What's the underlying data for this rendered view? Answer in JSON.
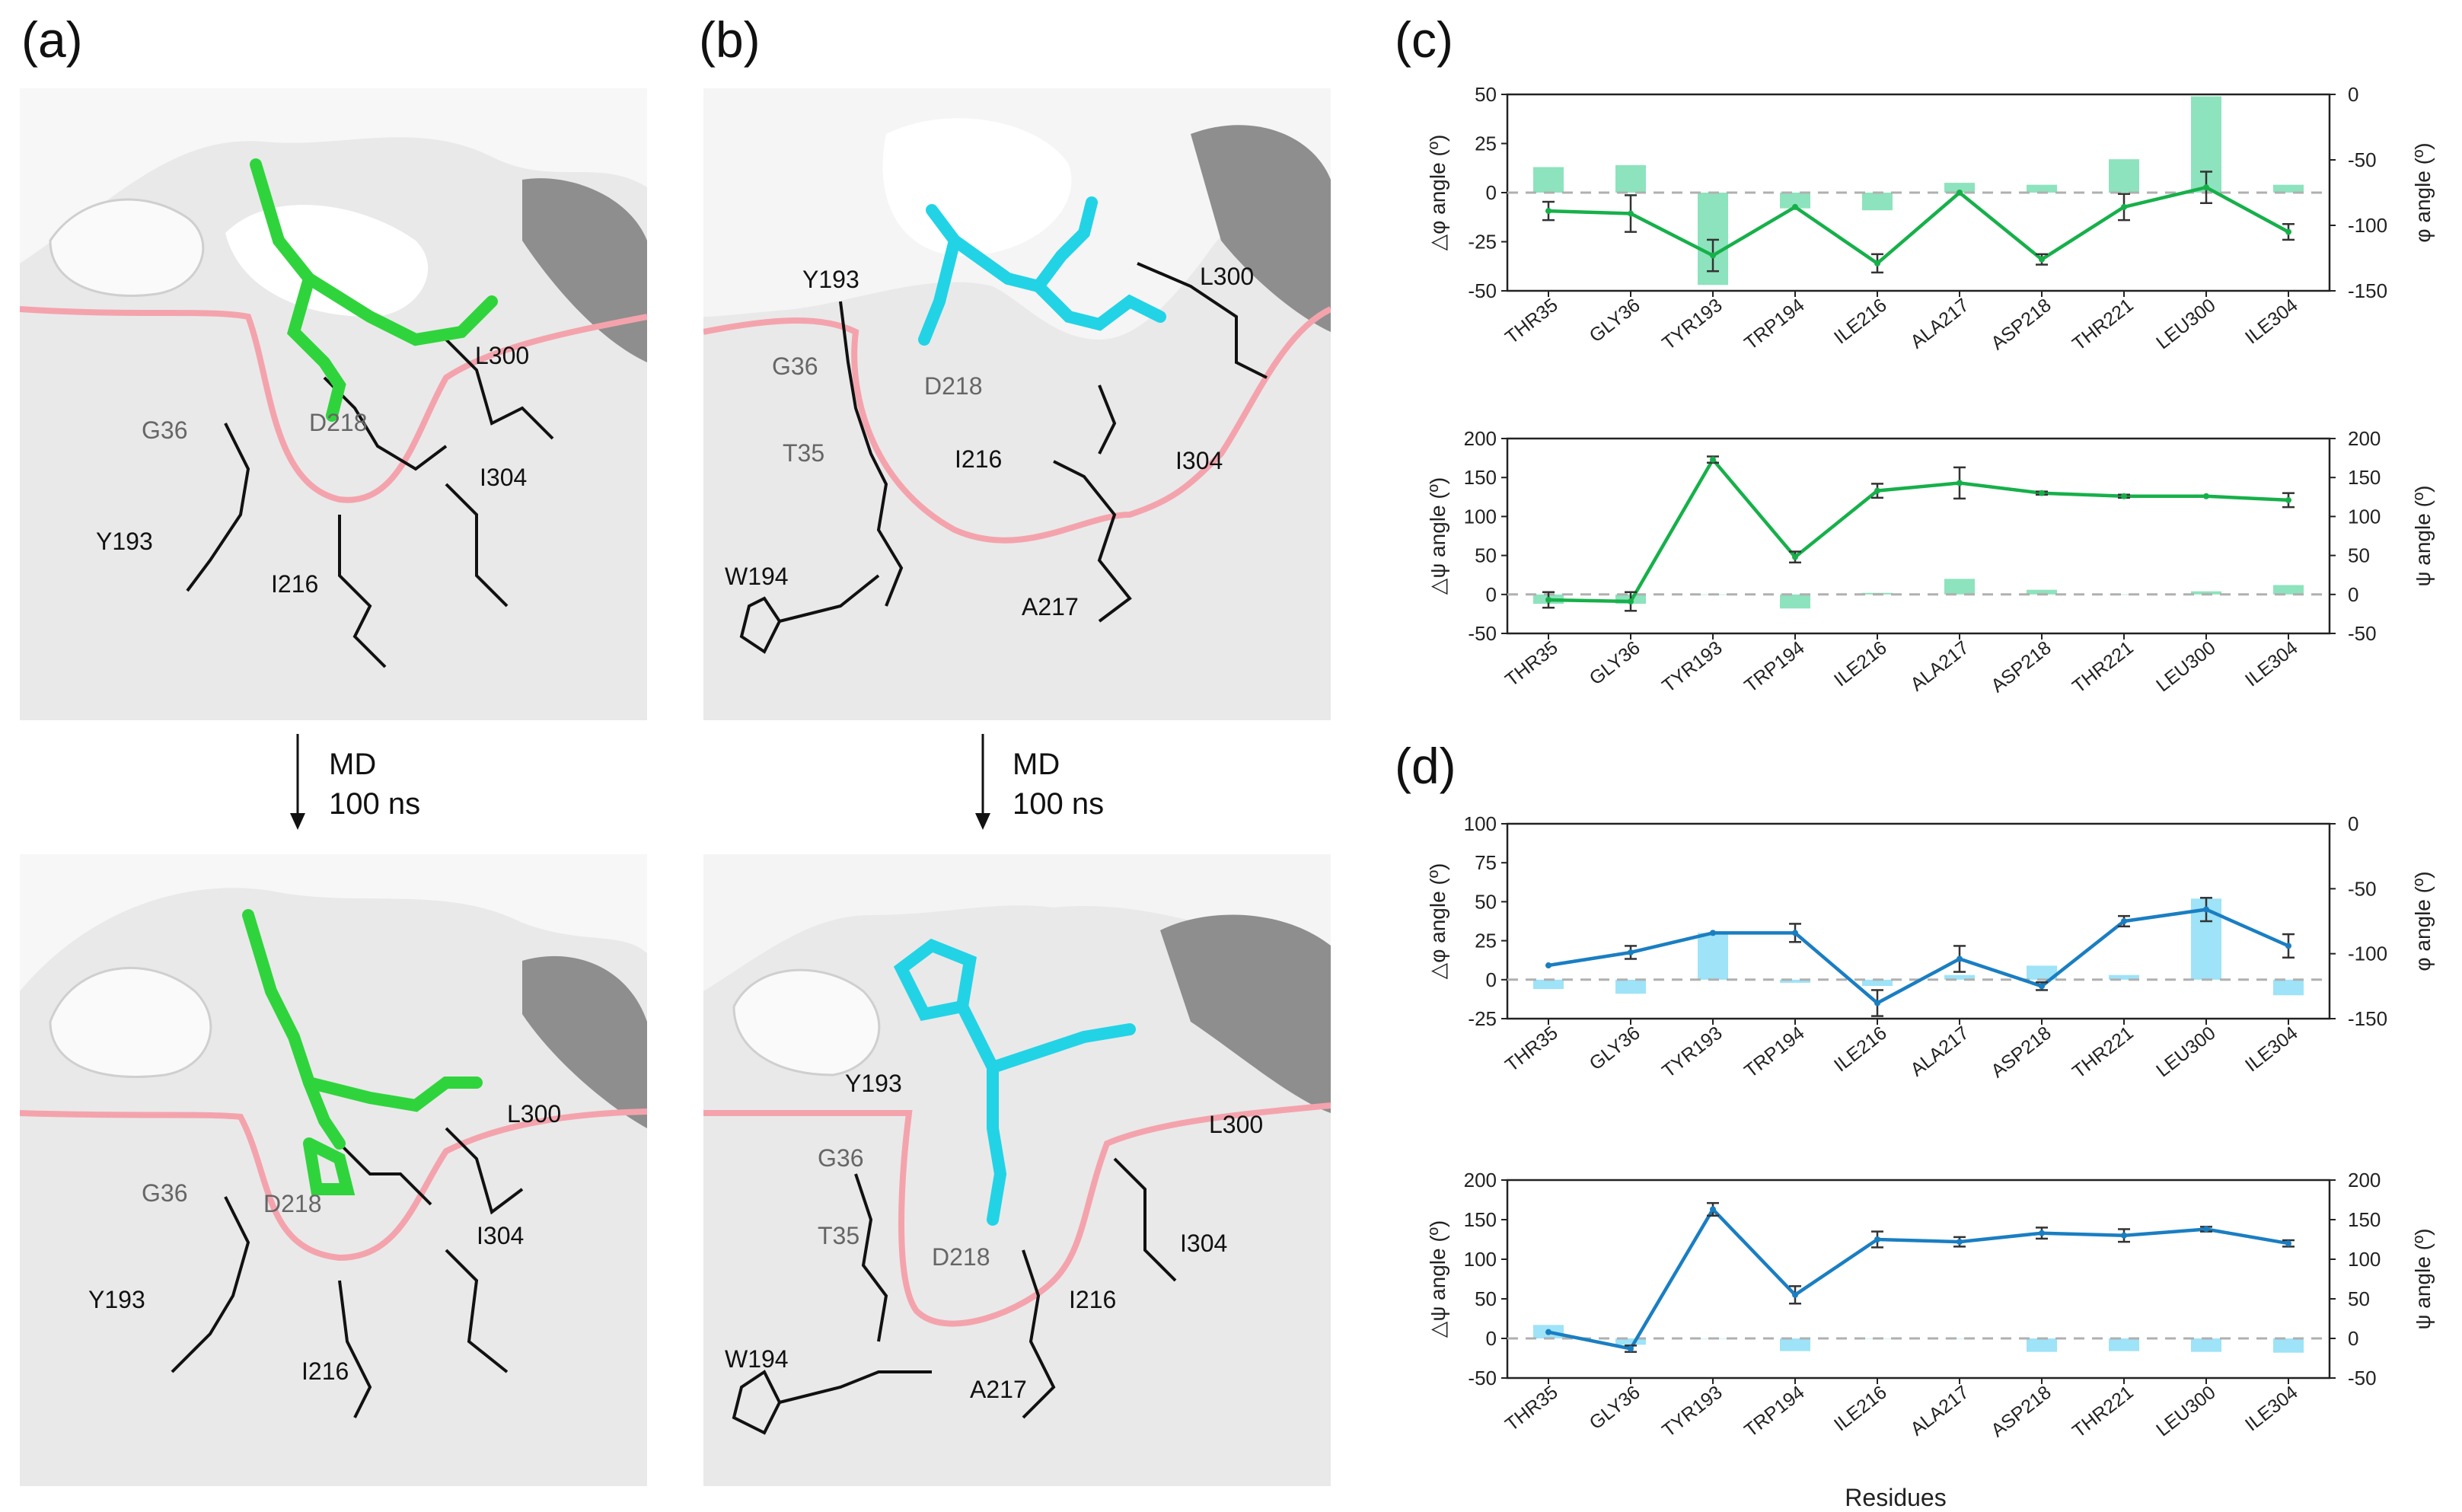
{
  "panels": {
    "a": "(a)",
    "b": "(b)",
    "c": "(c)",
    "d": "(d)"
  },
  "md_label": {
    "line1": "MD",
    "line2": "100 ns"
  },
  "structures": {
    "a_top": [
      "L300",
      "G36",
      "D218",
      "I304",
      "Y193",
      "I216"
    ],
    "a_bottom": [
      "L300",
      "G36",
      "D218",
      "I304",
      "Y193",
      "I216"
    ],
    "b_top": [
      "Y193",
      "L300",
      "G36",
      "D218",
      "T35",
      "I216",
      "I304",
      "W194",
      "A217"
    ],
    "b_bottom": [
      "Y193",
      "L300",
      "G36",
      "T35",
      "D218",
      "I304",
      "I216",
      "W194",
      "A217"
    ]
  },
  "colors": {
    "green": "#16b04a",
    "green_bar": "#8de3bd",
    "blue": "#1a7ec2",
    "blue_bar": "#9ee3f7",
    "pink": "#f4a3ad",
    "cyan": "#22d3e6",
    "ligand_green": "#2fd43c"
  },
  "chart_data": [
    {
      "id": "c-phi",
      "type": "bar+line",
      "panel": "(c)",
      "categories": [
        "THR35",
        "GLY36",
        "TYR193",
        "TRP194",
        "ILE216",
        "ALA217",
        "ASP218",
        "THR221",
        "LEU300",
        "ILE304"
      ],
      "ylabel": "△φ angle (º)",
      "y2label": "φ angle (º)",
      "ylim": [
        -50,
        50
      ],
      "yticks": [
        "50",
        "25",
        "0",
        "-25",
        "-50"
      ],
      "ytick_values": [
        50,
        25,
        0,
        -25,
        -50
      ],
      "y2lim": [
        -150,
        0
      ],
      "y2ticks": [
        "0",
        "-50",
        "-100",
        "-150"
      ],
      "y2tick_values": [
        0,
        -50,
        -100,
        -150
      ],
      "series": [
        {
          "name": "Δφ",
          "axis": "left",
          "kind": "bar",
          "values": [
            13,
            14,
            -47,
            -8,
            -9,
            5,
            4,
            17,
            49,
            4
          ]
        },
        {
          "name": "φ",
          "axis": "right",
          "kind": "line",
          "values": [
            -89,
            -91,
            -123,
            -86,
            -129,
            -75,
            -126,
            -86,
            -71,
            -105
          ],
          "errors": [
            7,
            14,
            12,
            0,
            7,
            0,
            4,
            10,
            12,
            6
          ]
        }
      ]
    },
    {
      "id": "c-psi",
      "type": "bar+line",
      "panel": "(c)",
      "categories": [
        "THR35",
        "GLY36",
        "TYR193",
        "TRP194",
        "ILE216",
        "ALA217",
        "ASP218",
        "THR221",
        "LEU300",
        "ILE304"
      ],
      "ylabel": "△ψ angle (º)",
      "y2label": "ψ angle (º)",
      "ylim": [
        -50,
        200
      ],
      "yticks": [
        "200",
        "150",
        "100",
        "50",
        "0",
        "-50"
      ],
      "ytick_values": [
        200,
        150,
        100,
        50,
        0,
        -50
      ],
      "y2lim": [
        -50,
        200
      ],
      "y2ticks": [
        "200",
        "150",
        "100",
        "50",
        "0",
        "-50"
      ],
      "y2tick_values": [
        200,
        150,
        100,
        50,
        0,
        -50
      ],
      "series": [
        {
          "name": "Δψ",
          "axis": "left",
          "kind": "bar",
          "values": [
            -12,
            -12,
            0,
            -18,
            2,
            20,
            6,
            0,
            4,
            12
          ]
        },
        {
          "name": "ψ",
          "axis": "right",
          "kind": "line",
          "values": [
            -7,
            -9,
            173,
            48,
            133,
            143,
            130,
            126,
            126,
            121
          ],
          "errors": [
            10,
            12,
            4,
            7,
            9,
            20,
            2,
            2,
            0,
            9
          ]
        }
      ]
    },
    {
      "id": "d-phi",
      "type": "bar+line",
      "panel": "(d)",
      "categories": [
        "THR35",
        "GLY36",
        "TYR193",
        "TRP194",
        "ILE216",
        "ALA217",
        "ASP218",
        "THR221",
        "LEU300",
        "ILE304"
      ],
      "ylabel": "△φ angle (º)",
      "y2label": "φ angle (º)",
      "ylim": [
        -25,
        100
      ],
      "yticks": [
        "100",
        "75",
        "50",
        "25",
        "0",
        "-25"
      ],
      "ytick_values": [
        100,
        75,
        50,
        25,
        0,
        -25
      ],
      "y2lim": [
        -150,
        0
      ],
      "y2ticks": [
        "0",
        "-50",
        "-100",
        "-150"
      ],
      "y2tick_values": [
        0,
        -50,
        -100,
        -150
      ],
      "series": [
        {
          "name": "Δφ",
          "axis": "left",
          "kind": "bar",
          "values": [
            -6,
            -9,
            30,
            -2,
            -4,
            3,
            9,
            3,
            52,
            -10
          ]
        },
        {
          "name": "φ",
          "axis": "right",
          "kind": "line",
          "values": [
            -109,
            -99,
            -84,
            -84,
            -138,
            -104,
            -125,
            -75,
            -66,
            -94
          ],
          "errors": [
            0,
            5,
            0,
            7,
            10,
            10,
            3,
            4,
            9,
            9
          ]
        }
      ]
    },
    {
      "id": "d-psi",
      "type": "bar+line",
      "panel": "(d)",
      "categories": [
        "THR35",
        "GLY36",
        "TYR193",
        "TRP194",
        "ILE216",
        "ALA217",
        "ASP218",
        "THR221",
        "LEU300",
        "ILE304"
      ],
      "ylabel": "△ψ angle (º)",
      "y2label": "ψ angle (º)",
      "xlabel": "Residues",
      "ylim": [
        -50,
        200
      ],
      "yticks": [
        "200",
        "150",
        "100",
        "50",
        "0",
        "-50"
      ],
      "ytick_values": [
        200,
        150,
        100,
        50,
        0,
        -50
      ],
      "y2lim": [
        -50,
        200
      ],
      "y2ticks": [
        "200",
        "150",
        "100",
        "50",
        "0",
        "-50"
      ],
      "y2tick_values": [
        200,
        150,
        100,
        50,
        0,
        -50
      ],
      "series": [
        {
          "name": "Δψ",
          "axis": "left",
          "kind": "bar",
          "values": [
            17,
            -8,
            0,
            -16,
            0,
            0,
            -17,
            -16,
            -17,
            -18
          ]
        },
        {
          "name": "ψ",
          "axis": "right",
          "kind": "line",
          "values": [
            8,
            -13,
            163,
            55,
            125,
            122,
            133,
            130,
            138,
            120
          ],
          "errors": [
            0,
            4,
            8,
            11,
            10,
            6,
            7,
            8,
            3,
            4
          ]
        }
      ]
    }
  ]
}
